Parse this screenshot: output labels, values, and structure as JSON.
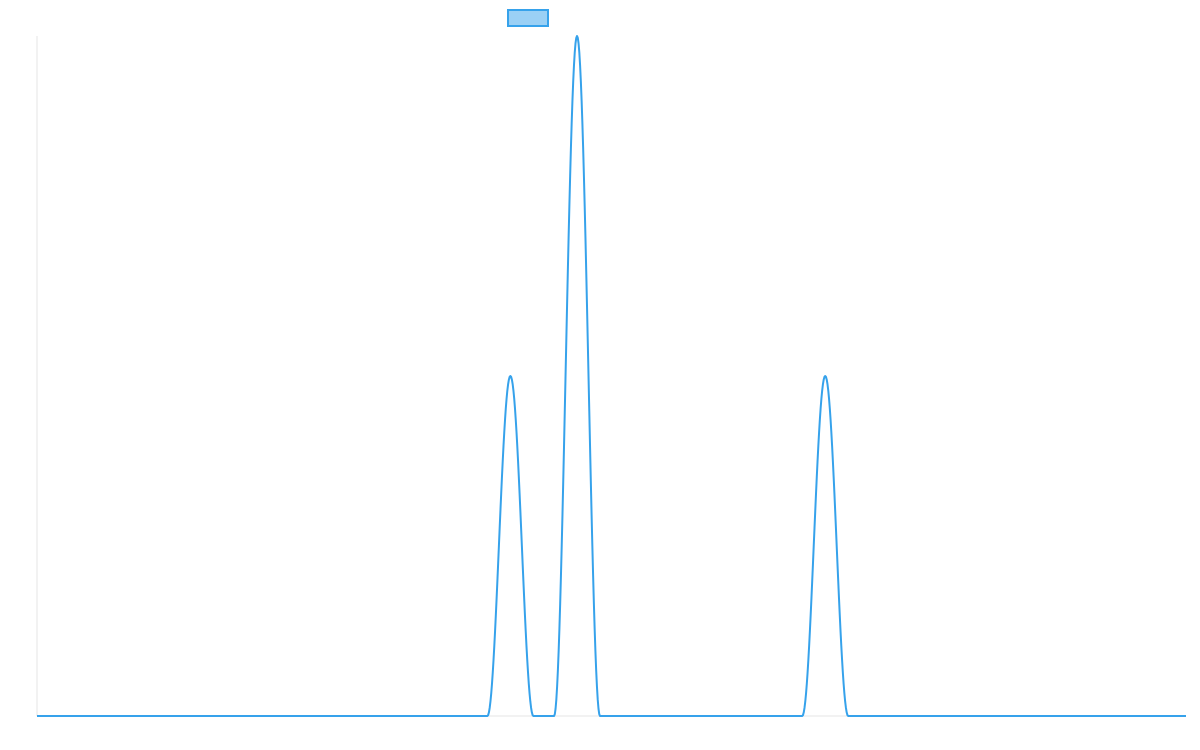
{
  "chart_data": {
    "type": "line",
    "title": "",
    "xlabel": "",
    "ylabel": "",
    "x_range": [
      0,
      250
    ],
    "ylim": [
      0,
      2
    ],
    "grid": false,
    "legend": {
      "placement": "top-center",
      "entries": [
        {
          "name": "",
          "color": "#36a2eb"
        }
      ]
    },
    "series": [
      {
        "name": "",
        "color": "#36a2eb",
        "fill_color": "#9ad0f5",
        "peaks": [
          {
            "center": 103,
            "height": 1,
            "half_width": 5
          },
          {
            "center": 117.5,
            "height": 2,
            "half_width": 5
          },
          {
            "center": 171.5,
            "height": 1,
            "half_width": 5
          }
        ]
      }
    ]
  }
}
